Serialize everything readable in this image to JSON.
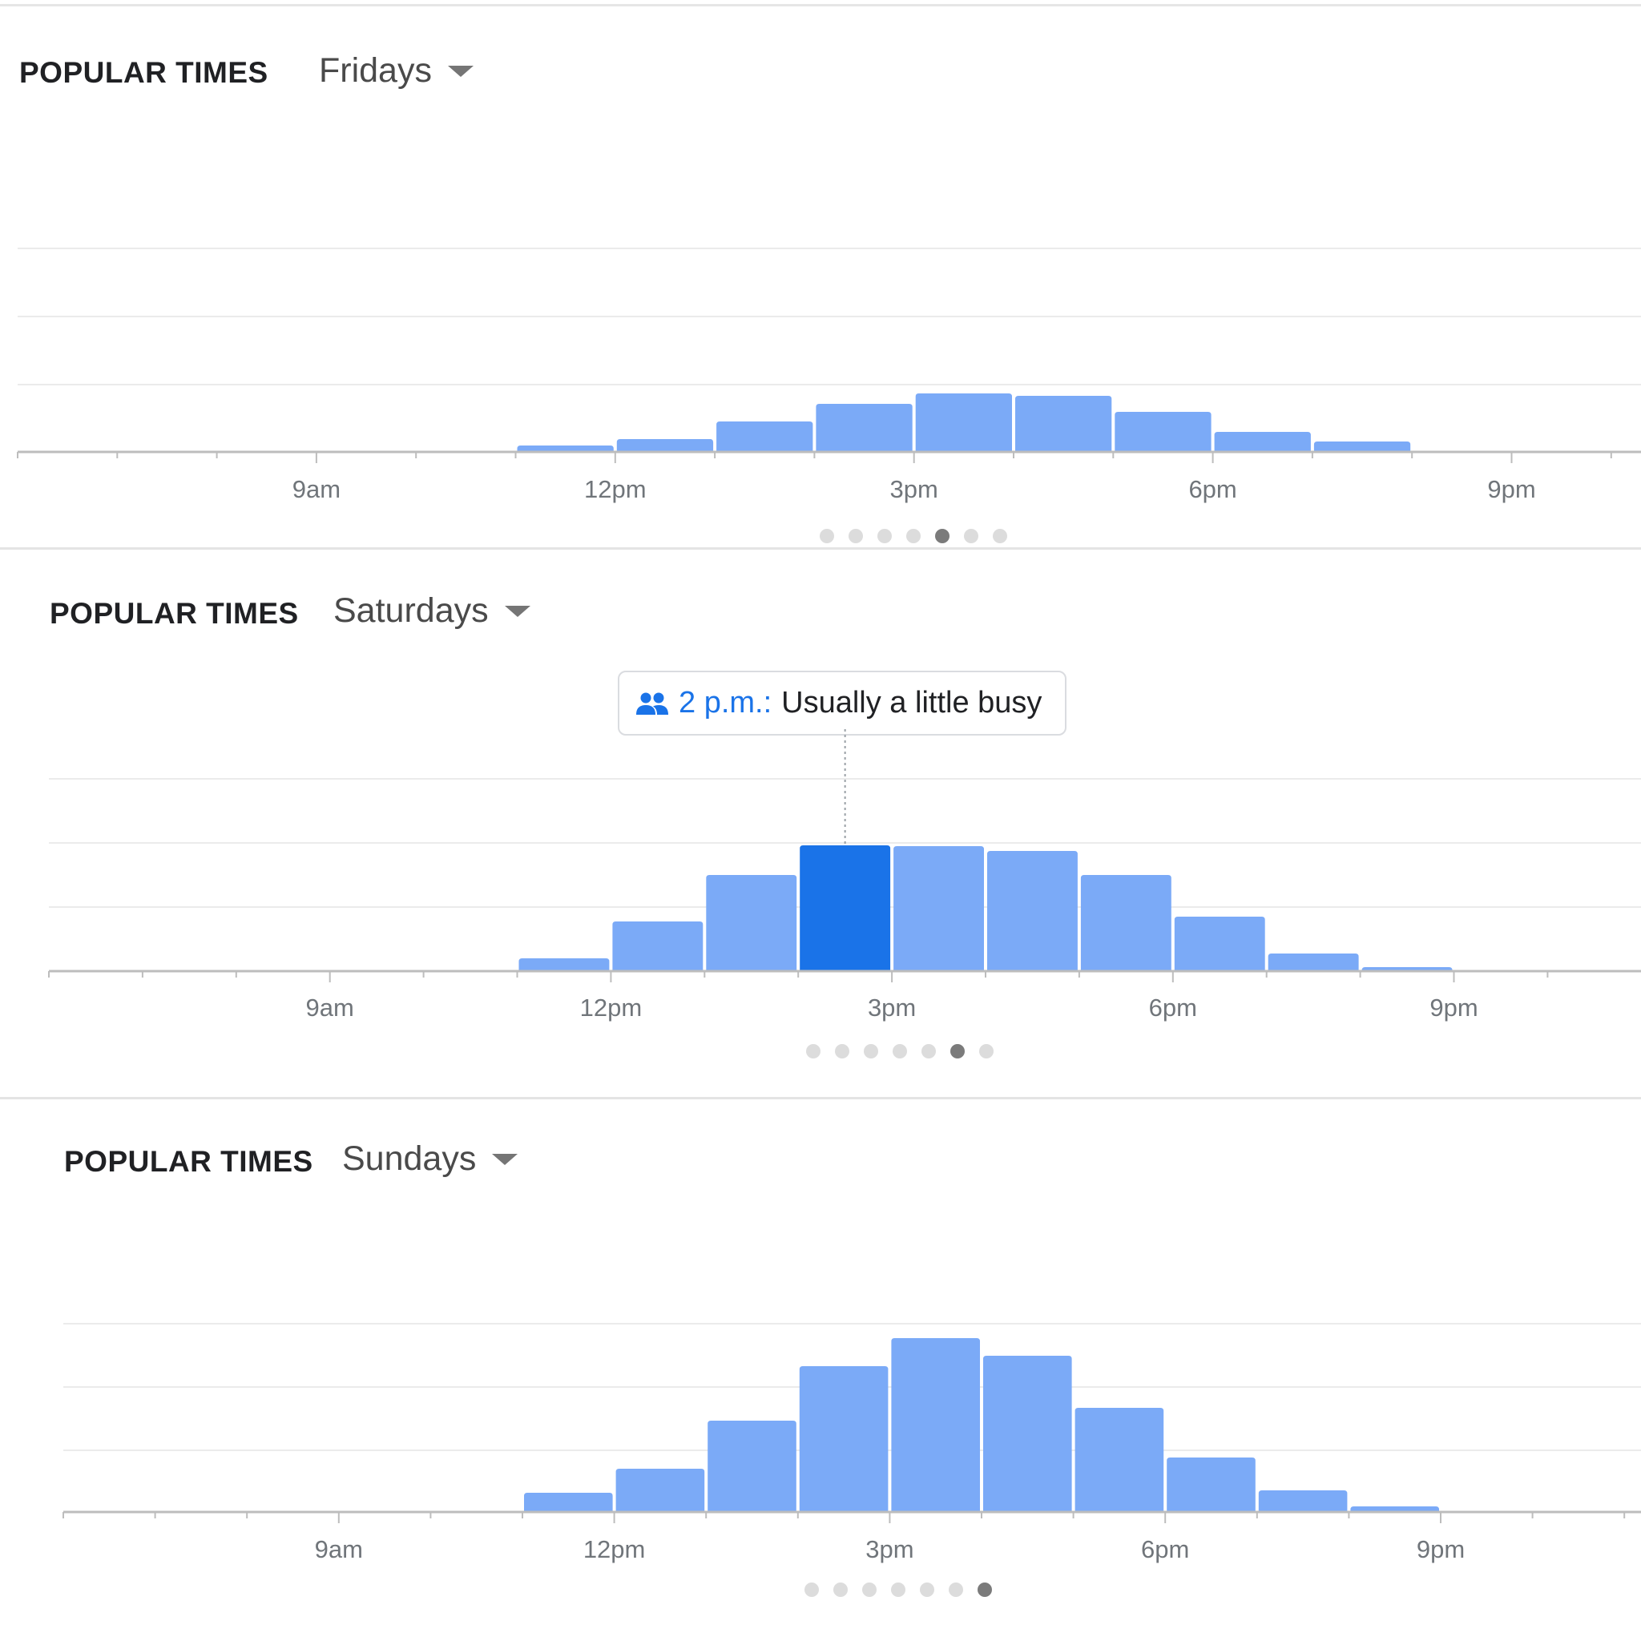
{
  "panels": [
    {
      "title": "POPULAR TIMES",
      "day": "Fridays",
      "active_dot": 4,
      "dot_count": 7
    },
    {
      "title": "POPULAR TIMES",
      "day": "Saturdays",
      "active_dot": 5,
      "dot_count": 7,
      "tooltip": {
        "time": "2 p.m.:",
        "text": "Usually a little busy"
      }
    },
    {
      "title": "POPULAR TIMES",
      "day": "Sundays",
      "active_dot": 6,
      "dot_count": 7
    }
  ],
  "colors": {
    "bar": "#7baaf7",
    "bar_selected": "#1a73e8",
    "gridline": "#ebebeb",
    "axis": "#bdbdbd",
    "accent": "#1a73e8"
  },
  "chart_data": [
    {
      "type": "bar",
      "title": "Fridays",
      "x_tick_labels": [
        "9am",
        "12pm",
        "3pm",
        "6pm",
        "9pm"
      ],
      "categories": [
        "6am",
        "7am",
        "8am",
        "9am",
        "10am",
        "11am",
        "12pm",
        "1pm",
        "2pm",
        "3pm",
        "4pm",
        "5pm",
        "6pm",
        "7pm",
        "8pm",
        "9pm",
        "10pm",
        "11pm"
      ],
      "values": [
        0,
        0,
        0,
        0,
        0,
        8,
        16,
        38,
        60,
        73,
        70,
        50,
        25,
        13,
        0,
        0,
        0,
        0
      ],
      "ylim": [
        0,
        220
      ],
      "grid": true
    },
    {
      "type": "bar",
      "title": "Saturdays",
      "x_tick_labels": [
        "9am",
        "12pm",
        "3pm",
        "6pm",
        "9pm"
      ],
      "categories": [
        "6am",
        "7am",
        "8am",
        "9am",
        "10am",
        "11am",
        "12pm",
        "1pm",
        "2pm",
        "3pm",
        "4pm",
        "5pm",
        "6pm",
        "7pm",
        "8pm",
        "9pm",
        "10pm",
        "11pm"
      ],
      "values": [
        0,
        0,
        0,
        0,
        0,
        16,
        62,
        120,
        157,
        156,
        150,
        120,
        68,
        22,
        5,
        0,
        0,
        0
      ],
      "selected_category": "2pm",
      "ylim": [
        0,
        220
      ],
      "grid": true
    },
    {
      "type": "bar",
      "title": "Sundays",
      "x_tick_labels": [
        "9am",
        "12pm",
        "3pm",
        "6pm",
        "9pm"
      ],
      "categories": [
        "6am",
        "7am",
        "8am",
        "9am",
        "10am",
        "11am",
        "12pm",
        "1pm",
        "2pm",
        "3pm",
        "4pm",
        "5pm",
        "6pm",
        "7pm",
        "8pm",
        "9pm",
        "10pm",
        "11pm"
      ],
      "values": [
        0,
        0,
        0,
        0,
        0,
        24,
        54,
        114,
        182,
        217,
        195,
        130,
        68,
        27,
        7,
        0,
        0,
        0
      ],
      "ylim": [
        0,
        220
      ],
      "grid": true
    }
  ]
}
